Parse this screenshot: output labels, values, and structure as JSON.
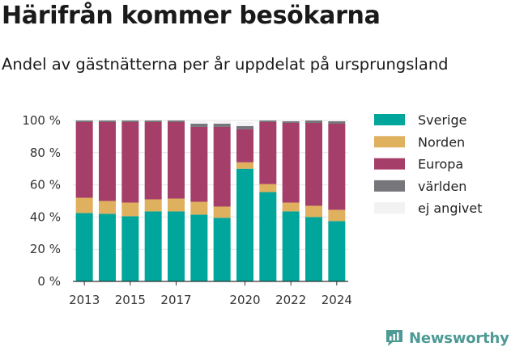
{
  "title": "Härifrån kommer besökarna",
  "subtitle": "Andel av gästnätterna per år uppdelat på ursprungsland",
  "brand": {
    "name": "Newsworthy",
    "color": "#4e9a94"
  },
  "chart_data": {
    "type": "bar",
    "stacked": true,
    "title": "Härifrån kommer besökarna",
    "subtitle": "Andel av gästnätterna per år uppdelat på ursprungsland",
    "xlabel": "",
    "ylabel": "",
    "ylim": [
      0,
      100
    ],
    "yticks": [
      0,
      20,
      40,
      60,
      80,
      100
    ],
    "ytick_labels": [
      "0 %",
      "20 %",
      "40 %",
      "60 %",
      "80 %",
      "100 %"
    ],
    "xtick_labels": [
      "2013",
      "2015",
      "2017",
      "2020",
      "2022",
      "2024"
    ],
    "categories": [
      "2013",
      "2014",
      "2015",
      "2016",
      "2017",
      "2018",
      "2019",
      "2020",
      "2021",
      "2022",
      "2023",
      "2024"
    ],
    "grid": true,
    "legend_position": "right",
    "series": [
      {
        "name": "Sverige",
        "color": "#00a59b",
        "values": [
          42.5,
          42,
          40.5,
          43.5,
          43.5,
          41.5,
          39.5,
          70,
          55.5,
          43.5,
          40,
          37.5
        ]
      },
      {
        "name": "Norden",
        "color": "#dfb05e",
        "values": [
          9.5,
          8,
          8.5,
          7.5,
          8,
          8,
          7,
          4,
          5,
          5.5,
          7,
          7
        ]
      },
      {
        "name": "Europa",
        "color": "#a63e6a",
        "values": [
          47,
          49,
          50,
          48,
          47.5,
          46.5,
          49.5,
          20.5,
          38.5,
          49.5,
          51.5,
          53.5
        ]
      },
      {
        "name": "världen",
        "color": "#76767b",
        "values": [
          1,
          1,
          1,
          1,
          1,
          2,
          2,
          2,
          1,
          1,
          1.5,
          1.5
        ]
      },
      {
        "name": "ej angivet",
        "color": "#f2f2f2",
        "values": [
          0,
          0,
          0,
          0,
          0,
          2,
          2,
          2.5,
          0,
          0.5,
          0,
          0.5
        ]
      }
    ]
  }
}
